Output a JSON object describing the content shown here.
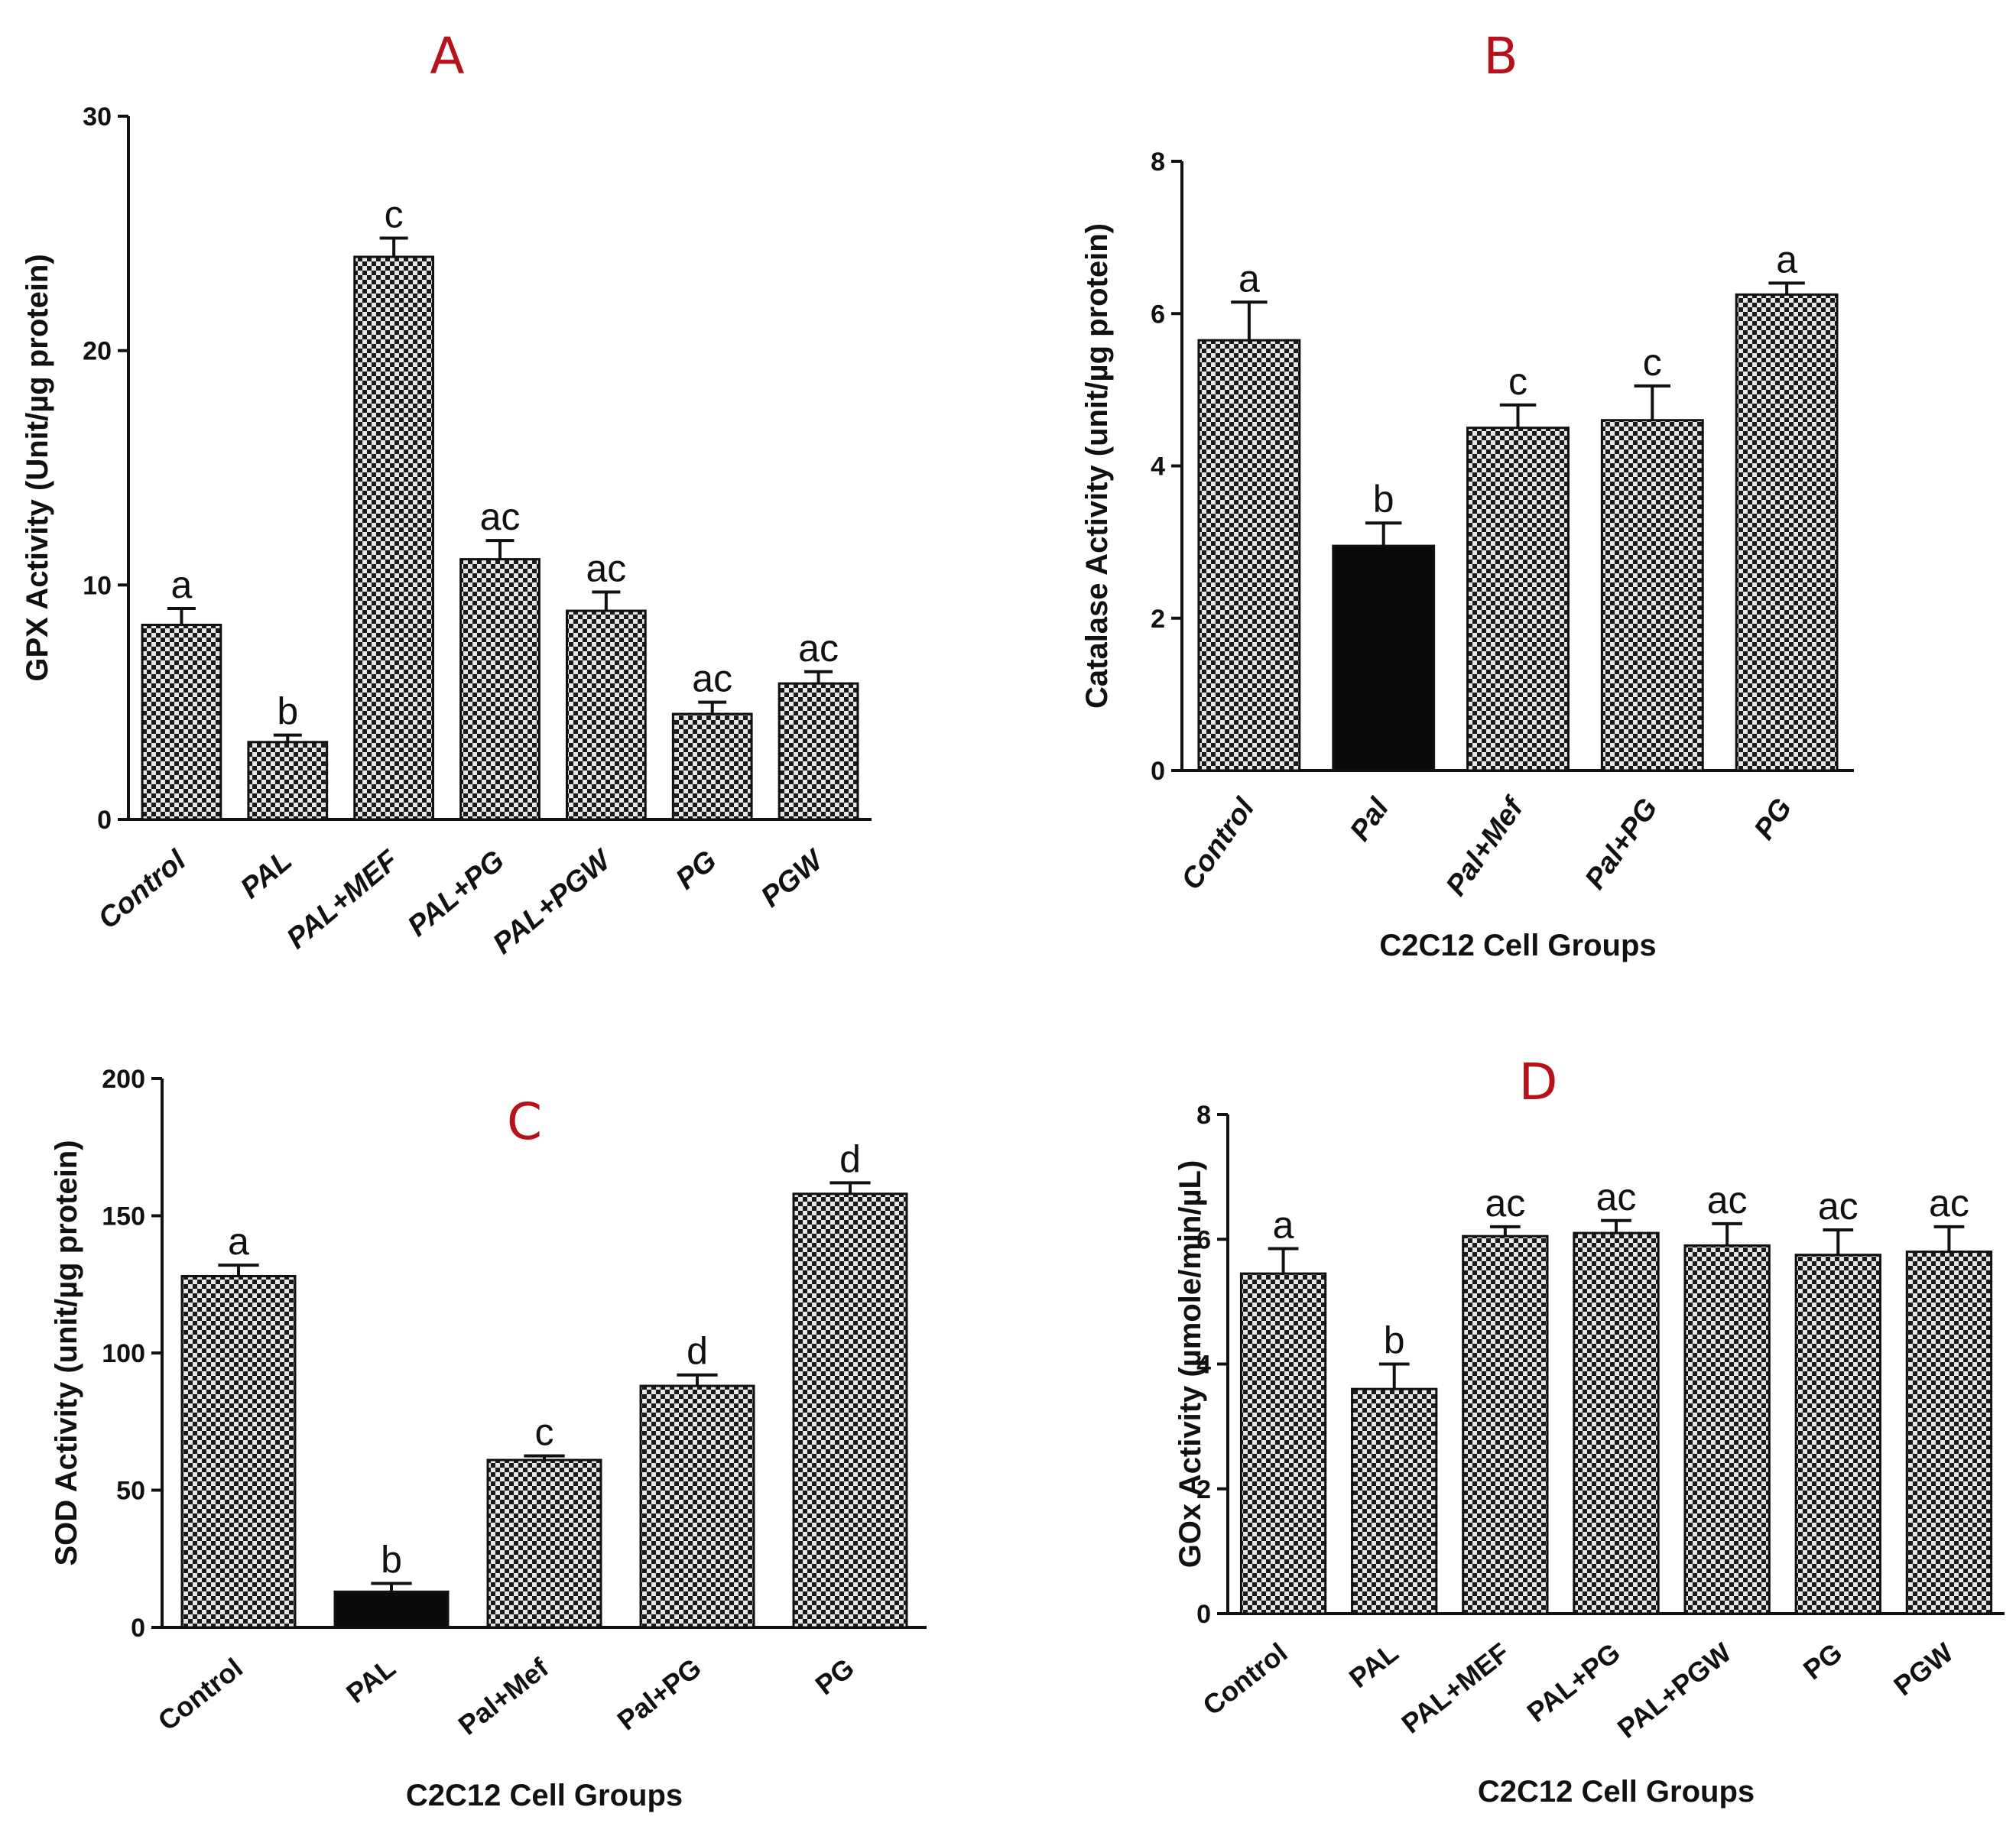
{
  "chart_data": [
    {
      "type": "bar",
      "panel_label": "A",
      "title": "",
      "xlabel": "",
      "ylabel": "GPX Activity (Unit/µg protein)",
      "ylim": [
        0,
        30
      ],
      "yticks": [
        "0",
        "10",
        "20",
        "30"
      ],
      "categories": [
        "Control",
        "PAL",
        "PAL+MEF",
        "PAL+PG",
        "PAL+PGW",
        "PG",
        "PGW"
      ],
      "values": [
        8.3,
        3.3,
        24.0,
        11.1,
        8.9,
        4.5,
        5.8
      ],
      "errors": [
        0.7,
        0.3,
        0.8,
        0.8,
        0.8,
        0.5,
        0.5
      ],
      "significance": [
        "a",
        "b",
        "c",
        "ac",
        "ac",
        "ac",
        "ac"
      ],
      "bar_fills": [
        "pattern",
        "pattern",
        "pattern",
        "pattern",
        "pattern",
        "pattern",
        "pattern"
      ],
      "grid": false
    },
    {
      "type": "bar",
      "panel_label": "B",
      "title": "",
      "xlabel": "C2C12 Cell Groups",
      "ylabel": "Catalase Activity (unit/µg protein)",
      "ylim": [
        0,
        8
      ],
      "yticks": [
        "0",
        "2",
        "4",
        "6",
        "8"
      ],
      "categories": [
        "Control",
        "Pal",
        "Pal+Mef",
        "Pal+PG",
        "PG"
      ],
      "values": [
        5.65,
        2.95,
        4.5,
        4.6,
        6.25
      ],
      "errors": [
        0.5,
        0.3,
        0.3,
        0.45,
        0.15
      ],
      "significance": [
        "a",
        "b",
        "c",
        "c",
        "a"
      ],
      "bar_fills": [
        "pattern",
        "solid",
        "pattern",
        "pattern",
        "pattern"
      ],
      "grid": false
    },
    {
      "type": "bar",
      "panel_label": "C",
      "title": "",
      "xlabel": "C2C12 Cell Groups",
      "ylabel": "SOD Activity (unit/µg protein)",
      "ylim": [
        0,
        200
      ],
      "yticks": [
        "0",
        "50",
        "100",
        "150",
        "200"
      ],
      "categories": [
        "Control",
        "PAL",
        "Pal+Mef",
        "Pal+PG",
        "PG"
      ],
      "values": [
        128,
        13,
        61,
        88,
        158
      ],
      "errors": [
        4,
        3,
        1.5,
        4,
        4
      ],
      "significance": [
        "a",
        "b",
        "c",
        "d",
        "d"
      ],
      "bar_fills": [
        "pattern",
        "solid",
        "pattern",
        "pattern",
        "pattern"
      ],
      "grid": false
    },
    {
      "type": "bar",
      "panel_label": "D",
      "title": "",
      "xlabel": "C2C12 Cell Groups",
      "ylabel": "GOx Activity (µmole/min/µL)",
      "ylim": [
        0,
        8
      ],
      "yticks": [
        "0",
        "2",
        "4",
        "6",
        "8"
      ],
      "categories": [
        "Control",
        "PAL",
        "PAL+MEF",
        "PAL+PG",
        "PAL+PGW",
        "PG",
        "PGW"
      ],
      "values": [
        5.45,
        3.6,
        6.05,
        6.1,
        5.9,
        5.75,
        5.8
      ],
      "errors": [
        0.4,
        0.4,
        0.15,
        0.2,
        0.35,
        0.4,
        0.4
      ],
      "significance": [
        "a",
        "b",
        "ac",
        "ac",
        "ac",
        "ac",
        "ac"
      ],
      "bar_fills": [
        "pattern",
        "pattern",
        "pattern",
        "pattern",
        "pattern",
        "pattern",
        "pattern"
      ],
      "grid": false
    }
  ],
  "colors": {
    "panel_letter": "#b5121b",
    "bar_pattern_dark": "#1a1a1a",
    "bar_pattern_light": "#e6e6e6",
    "bar_solid": "#0a0a0a",
    "axis": "#111111"
  }
}
